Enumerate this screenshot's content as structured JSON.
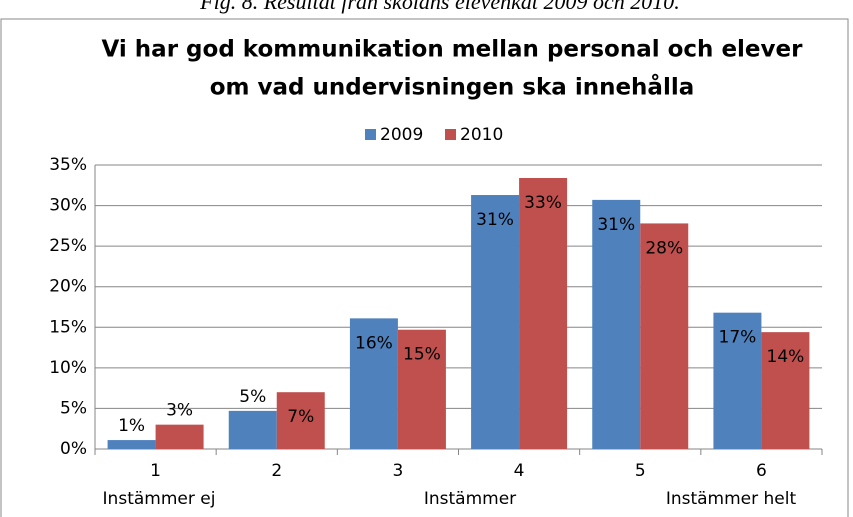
{
  "caption": "Fig. 8. Resultat från skolans elevenkät 2009 och 2010.",
  "chart_data": {
    "type": "bar",
    "title": [
      "Vi har god kommunikation mellan personal och elever",
      "om vad undervisningen ska innehålla"
    ],
    "categories": [
      "1",
      "2",
      "3",
      "4",
      "5",
      "6"
    ],
    "annotations": [
      "Instämmer ej",
      "Instämmer",
      "Instämmer helt"
    ],
    "series": [
      {
        "name": "2009",
        "color": "#4f81bd",
        "values": [
          1.1,
          4.7,
          16.1,
          31.3,
          30.7,
          16.8
        ],
        "value_labels": [
          "1%",
          "5%",
          "16%",
          "31%",
          "31%",
          "17%"
        ]
      },
      {
        "name": "2010",
        "color": "#c0504d",
        "values": [
          3.0,
          7.0,
          14.7,
          33.4,
          27.8,
          14.4
        ],
        "value_labels": [
          "3%",
          "7%",
          "15%",
          "33%",
          "28%",
          "14%"
        ]
      }
    ],
    "ylim": [
      0,
      35
    ],
    "yticks": [
      {
        "value": 0,
        "label": "0%"
      },
      {
        "value": 5,
        "label": "5%"
      },
      {
        "value": 10,
        "label": "10%"
      },
      {
        "value": 15,
        "label": "15%"
      },
      {
        "value": 20,
        "label": "20%"
      },
      {
        "value": 25,
        "label": "25%"
      },
      {
        "value": 30,
        "label": "30%"
      },
      {
        "value": 35,
        "label": "35%"
      }
    ],
    "grid": true,
    "legend": "top"
  }
}
